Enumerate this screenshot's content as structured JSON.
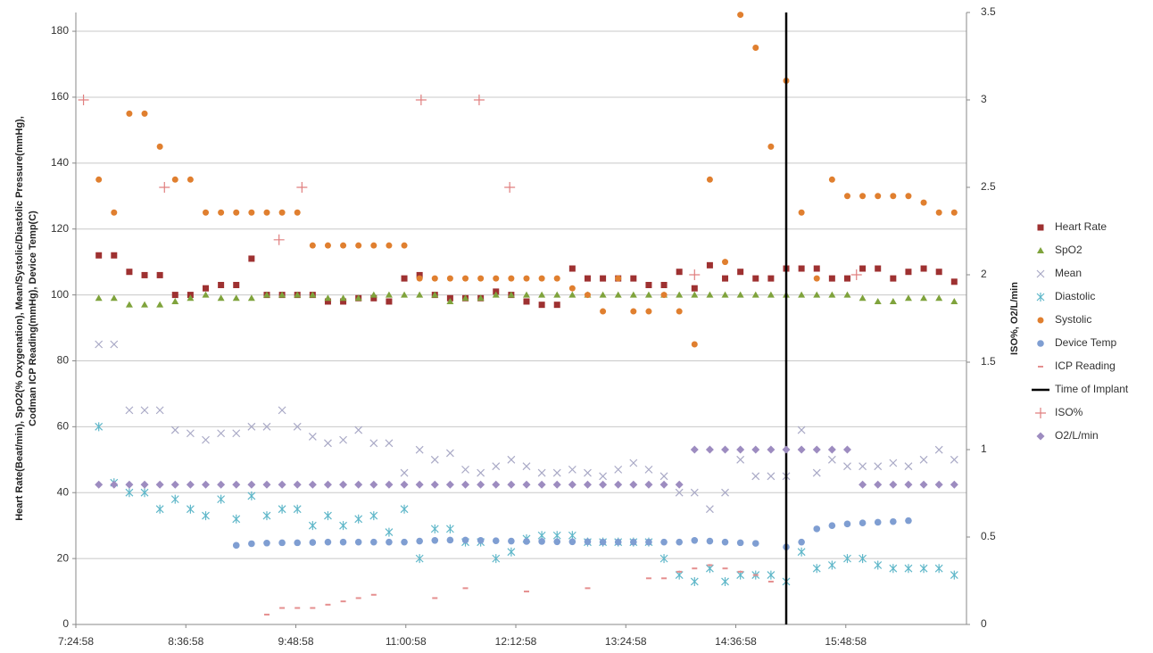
{
  "chart_data": {
    "type": "scatter",
    "y_label_lines": [
      "Heart Rate(Beat/min), SpO2(% Oxygenation), Mean/Systolic/Diastolic Pressure(mmHg),",
      "Codman ICP Reading(mmHg), Device Temp(C)"
    ],
    "y2_label": "ISO%, O2/L/min",
    "xlim": [
      0,
      583
    ],
    "xticks": [
      {
        "value": 0,
        "label": "7:24:58"
      },
      {
        "value": 72,
        "label": "8:36:58"
      },
      {
        "value": 144,
        "label": "9:48:58"
      },
      {
        "value": 216,
        "label": "11:00:58"
      },
      {
        "value": 288,
        "label": "12:12:58"
      },
      {
        "value": 360,
        "label": "13:24:58"
      },
      {
        "value": 432,
        "label": "14:36:58"
      },
      {
        "value": 504,
        "label": "15:48:58"
      }
    ],
    "ylim": [
      0,
      185.7
    ],
    "yticks": [
      0,
      20,
      40,
      60,
      80,
      100,
      120,
      140,
      160,
      180
    ],
    "y2lim": [
      0,
      3.5
    ],
    "y2ticks": [
      0,
      0.5,
      1,
      1.5,
      2,
      2.5,
      3,
      3.5
    ],
    "grid": true,
    "legend": "right",
    "x": [
      15,
      25,
      35,
      45,
      55,
      65,
      75,
      85,
      95,
      105,
      115,
      125,
      135,
      145,
      155,
      165,
      175,
      185,
      195,
      205,
      215,
      225,
      235,
      245,
      255,
      265,
      275,
      285,
      295,
      305,
      315,
      325,
      335,
      345,
      355,
      365,
      375,
      385,
      395,
      405,
      415,
      425,
      435,
      445,
      455,
      465,
      475,
      485,
      495,
      505,
      515,
      525,
      535,
      545,
      555,
      565,
      575
    ],
    "series": [
      {
        "name": "Heart Rate",
        "color": "#9e3131",
        "marker": "square",
        "values": [
          112,
          112,
          107,
          106,
          106,
          100,
          100,
          102,
          103,
          103,
          111,
          100,
          100,
          100,
          100,
          98,
          98,
          99,
          99,
          98,
          105,
          106,
          100,
          99,
          99,
          99,
          101,
          100,
          98,
          97,
          97,
          108,
          105,
          105,
          105,
          105,
          103,
          103,
          107,
          102,
          109,
          105,
          107,
          105,
          105,
          108,
          108,
          108,
          105,
          105,
          108,
          108,
          105,
          107,
          108,
          107,
          104
        ]
      },
      {
        "name": "SpO2",
        "color": "#7fa33c",
        "marker": "triangle",
        "values": [
          99,
          99,
          97,
          97,
          97,
          98,
          99,
          100,
          99,
          99,
          99,
          100,
          100,
          100,
          100,
          99,
          99,
          99,
          100,
          100,
          100,
          100,
          100,
          98,
          99,
          99,
          100,
          100,
          100,
          100,
          100,
          100,
          100,
          100,
          100,
          100,
          100,
          100,
          100,
          100,
          100,
          100,
          100,
          100,
          100,
          100,
          100,
          100,
          100,
          100,
          99,
          98,
          98,
          99,
          99,
          99,
          98
        ]
      },
      {
        "name": "Mean",
        "color": "#a9a9c6",
        "marker": "x",
        "values": [
          85,
          85,
          65,
          65,
          65,
          59,
          58,
          56,
          58,
          58,
          60,
          60,
          65,
          60,
          57,
          55,
          56,
          59,
          55,
          55,
          46,
          53,
          50,
          52,
          47,
          46,
          48,
          50,
          48,
          46,
          46,
          47,
          46,
          45,
          47,
          49,
          47,
          45,
          40,
          40,
          35,
          40,
          50,
          45,
          45,
          45,
          59,
          46,
          50,
          48,
          48,
          48,
          49,
          48,
          50,
          53,
          50
        ]
      },
      {
        "name": "Diastolic",
        "color": "#5fb7c9",
        "marker": "asterisk",
        "values": [
          60,
          43,
          40,
          40,
          35,
          38,
          35,
          33,
          38,
          32,
          39,
          33,
          35,
          35,
          30,
          33,
          30,
          32,
          33,
          28,
          35,
          20,
          29,
          29,
          25,
          25,
          20,
          22,
          26,
          27,
          27,
          27,
          25,
          25,
          25,
          25,
          25,
          20,
          15,
          13,
          17,
          13,
          15,
          15,
          15,
          13,
          22,
          17,
          18,
          20,
          20,
          18,
          17,
          17,
          17,
          17,
          15
        ]
      },
      {
        "name": "Systolic",
        "color": "#e07f2f",
        "marker": "circle",
        "values": [
          135,
          125,
          155,
          155,
          145,
          135,
          135,
          125,
          125,
          125,
          125,
          125,
          125,
          125,
          115,
          115,
          115,
          115,
          115,
          115,
          115,
          105,
          105,
          105,
          105,
          105,
          105,
          105,
          105,
          105,
          105,
          102,
          100,
          95,
          105,
          95,
          95,
          100,
          95,
          85,
          135,
          110,
          185,
          175,
          145,
          165,
          125,
          105,
          135,
          130,
          130,
          130,
          130,
          130,
          128,
          125,
          125
        ]
      },
      {
        "name": "Device Temp",
        "color": "#7f9ed2",
        "marker": "dot",
        "values": [
          null,
          null,
          null,
          null,
          null,
          null,
          null,
          null,
          null,
          24,
          24.5,
          24.7,
          24.8,
          24.8,
          24.9,
          25,
          25,
          25,
          25,
          25,
          25,
          25.3,
          25.5,
          25.6,
          25.6,
          25.5,
          25.4,
          25.3,
          25.2,
          25.2,
          25.1,
          25.1,
          25.1,
          25,
          25,
          25,
          25,
          25,
          25,
          25.5,
          25.3,
          25,
          24.8,
          24.6,
          null,
          23.5,
          25,
          29,
          30,
          30.5,
          30.8,
          31,
          31.2,
          31.5,
          null,
          null,
          null
        ]
      },
      {
        "name": "ICP Reading",
        "color": "#e58f8f",
        "marker": "dash",
        "values": [
          null,
          null,
          null,
          null,
          null,
          null,
          null,
          null,
          null,
          null,
          null,
          3,
          5,
          5,
          5,
          6,
          7,
          8,
          9,
          null,
          null,
          null,
          8,
          null,
          11,
          null,
          null,
          null,
          10,
          null,
          null,
          null,
          11,
          null,
          null,
          null,
          14,
          14,
          16,
          17,
          18,
          17,
          16,
          15,
          13,
          null,
          null,
          null,
          null,
          null,
          null,
          null,
          null,
          null,
          null,
          null,
          null
        ]
      },
      {
        "name": "Time of Implant",
        "color": "#000000",
        "marker": "vline",
        "x": 465
      },
      {
        "name": "ISO%",
        "color": "#e07f7f",
        "marker": "plus",
        "axis": "y2",
        "x": [
          5,
          58,
          133,
          148,
          226,
          264,
          284,
          405,
          511
        ],
        "values": [
          3.0,
          2.5,
          2.2,
          2.5,
          3.0,
          3.0,
          2.5,
          2.0,
          2.0
        ]
      },
      {
        "name": "O2/L/min",
        "color": "#9d8cc0",
        "marker": "diamond",
        "axis": "y2",
        "values": [
          0.8,
          0.8,
          0.8,
          0.8,
          0.8,
          0.8,
          0.8,
          0.8,
          0.8,
          0.8,
          0.8,
          0.8,
          0.8,
          0.8,
          0.8,
          0.8,
          0.8,
          0.8,
          0.8,
          0.8,
          0.8,
          0.8,
          0.8,
          0.8,
          0.8,
          0.8,
          0.8,
          0.8,
          0.8,
          0.8,
          0.8,
          0.8,
          0.8,
          0.8,
          0.8,
          0.8,
          0.8,
          0.8,
          0.8,
          1,
          1,
          1,
          1,
          1,
          1,
          1,
          1,
          1,
          1,
          1,
          0.8,
          0.8,
          0.8,
          0.8,
          0.8,
          0.8,
          0.8
        ]
      }
    ]
  }
}
